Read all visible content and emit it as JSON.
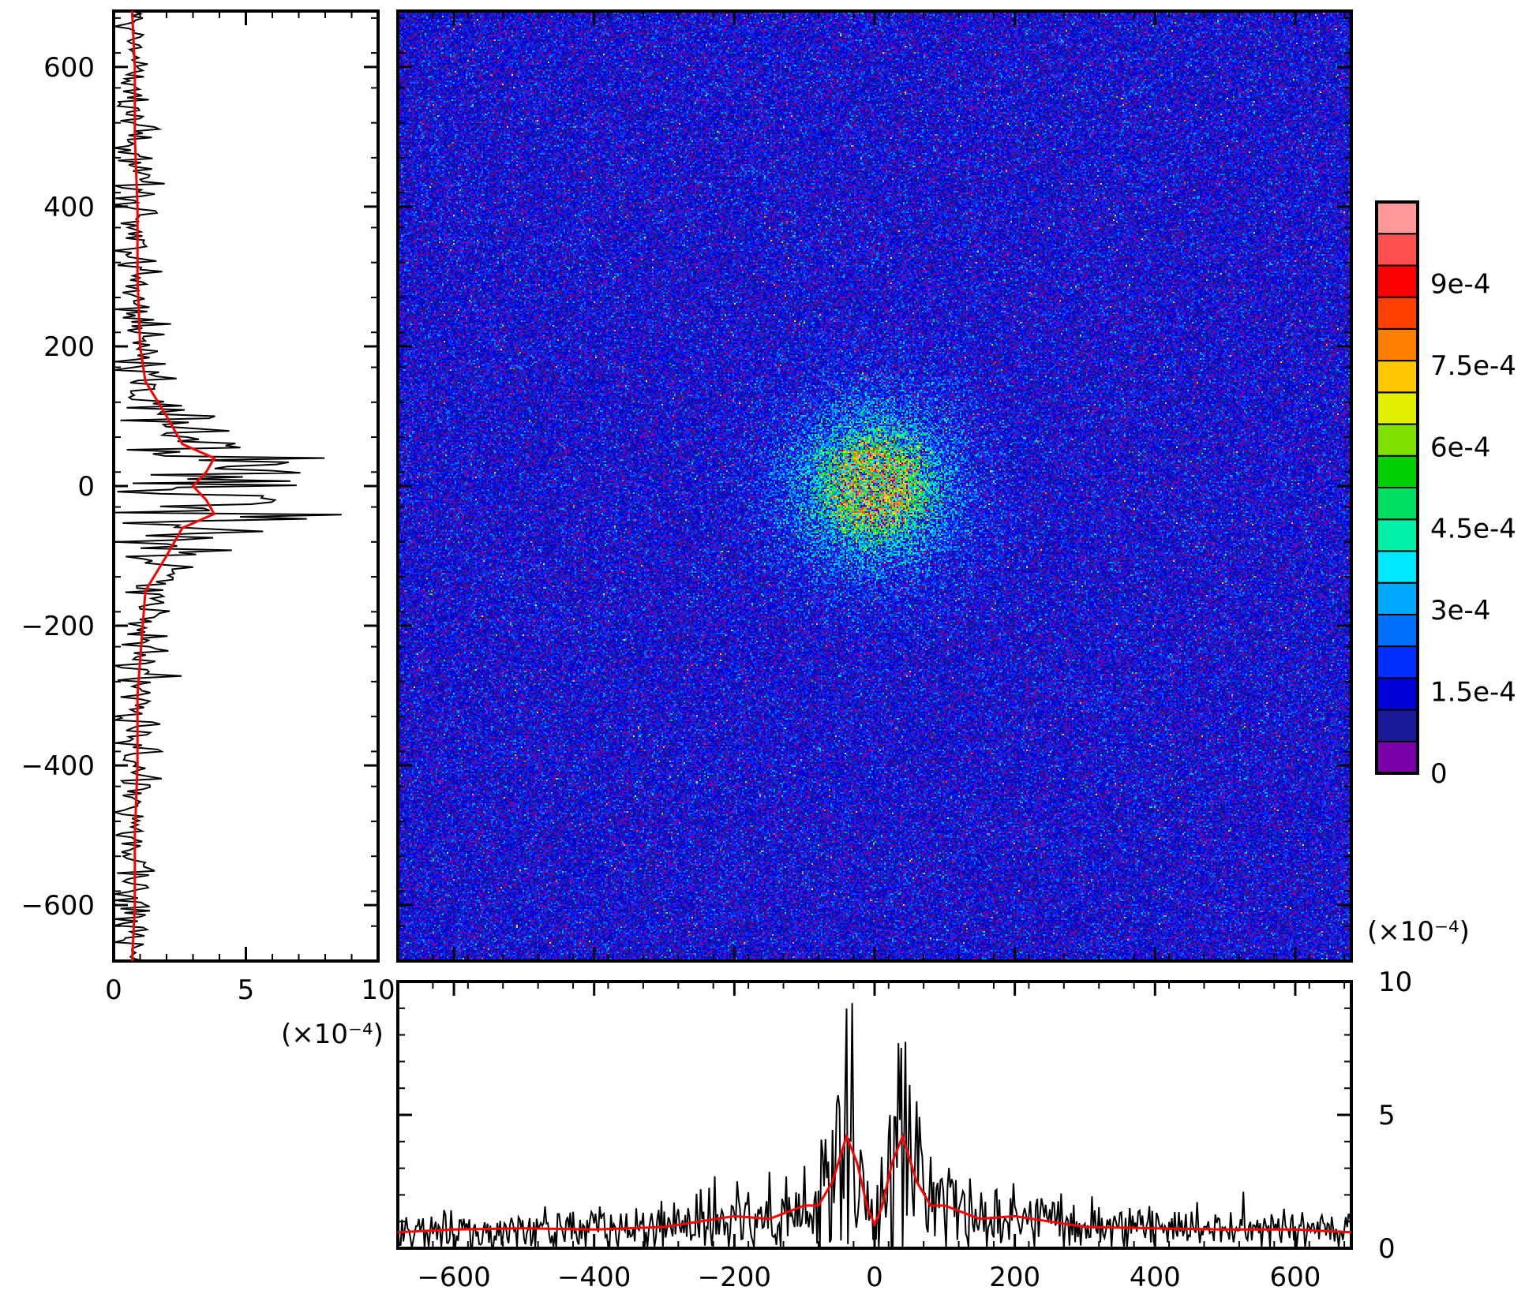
{
  "chart_data": [
    {
      "panel": "map",
      "type": "heatmap",
      "x_range": [
        -680,
        680
      ],
      "y_range": [
        -680,
        680
      ],
      "x_ticks": [
        -600,
        -400,
        -200,
        0,
        200,
        400,
        600
      ],
      "y_ticks": [
        -600,
        -400,
        -200,
        0,
        200,
        400,
        600
      ],
      "background_value": 0.00013,
      "peak": {
        "x": 0,
        "y": 0,
        "value": 0.0006,
        "spread_radius": 110,
        "ring_radius": 35
      },
      "value_range": [
        0,
        0.00105
      ]
    },
    {
      "panel": "colorbar",
      "type": "colorbar",
      "tick_labels": [
        "0",
        "1.5e-4",
        "3e-4",
        "4.5e-4",
        "6e-4",
        "7.5e-4",
        "9e-4"
      ],
      "tick_values": [
        0,
        0.00015,
        0.0003,
        0.00045,
        0.0006,
        0.00075,
        0.0009
      ],
      "levels": [
        "#7a00a8",
        "#1a1a99",
        "#0000d8",
        "#0030ff",
        "#0070ff",
        "#00a8ff",
        "#00e8ff",
        "#00f0a8",
        "#00e060",
        "#00d000",
        "#80e000",
        "#e0f000",
        "#ffc800",
        "#ff8000",
        "#ff4000",
        "#ff0000",
        "#ff5050",
        "#ff9898"
      ]
    },
    {
      "panel": "bottom-profile",
      "type": "line",
      "x_range": [
        -680,
        680
      ],
      "y_range": [
        0,
        10
      ],
      "x_ticks": [
        -600,
        -400,
        -200,
        0,
        200,
        400,
        600
      ],
      "y_ticks": [
        0,
        5,
        10
      ],
      "tick_labels_y": [
        "0",
        "5",
        "10"
      ],
      "multiplier_label": "(×10⁻⁴)",
      "series": [
        {
          "role": "raw",
          "color": "#000000"
        },
        {
          "role": "smoothed",
          "color": "#ff0000",
          "x": [
            -680,
            -600,
            -500,
            -400,
            -300,
            -200,
            -150,
            -100,
            -80,
            -60,
            -40,
            -25,
            -10,
            0,
            10,
            25,
            40,
            60,
            80,
            100,
            150,
            200,
            300,
            400,
            500,
            600,
            680
          ],
          "y": [
            0.6,
            0.7,
            0.75,
            0.7,
            0.8,
            1.2,
            1.1,
            1.6,
            1.6,
            2.5,
            4.2,
            3.2,
            1.5,
            0.9,
            1.5,
            3.2,
            4.2,
            2.5,
            1.6,
            1.6,
            1.1,
            1.2,
            0.8,
            0.75,
            0.7,
            0.7,
            0.6
          ]
        }
      ]
    },
    {
      "panel": "left-profile",
      "type": "line",
      "x_range": [
        0,
        10
      ],
      "y_range": [
        -680,
        680
      ],
      "x_ticks": [
        0,
        5,
        10
      ],
      "y_ticks": [
        -600,
        -400,
        -200,
        0,
        200,
        400,
        600
      ],
      "tick_labels_x": [
        "0",
        "5",
        "10"
      ],
      "multiplier_label": "(×10⁻⁴)",
      "series": [
        {
          "role": "raw",
          "color": "#000000"
        },
        {
          "role": "smoothed",
          "color": "#ff0000",
          "y": [
            -680,
            -600,
            -500,
            -400,
            -300,
            -200,
            -150,
            -100,
            -80,
            -60,
            -40,
            -20,
            0,
            20,
            40,
            60,
            80,
            100,
            150,
            200,
            300,
            400,
            500,
            600,
            680
          ],
          "x": [
            0.7,
            0.8,
            0.8,
            0.9,
            0.9,
            1.1,
            1.2,
            2.0,
            2.3,
            2.6,
            3.8,
            3.5,
            3.0,
            3.5,
            3.8,
            2.6,
            2.3,
            2.0,
            1.2,
            1.0,
            0.9,
            0.9,
            0.8,
            0.8,
            0.7
          ]
        }
      ]
    }
  ]
}
